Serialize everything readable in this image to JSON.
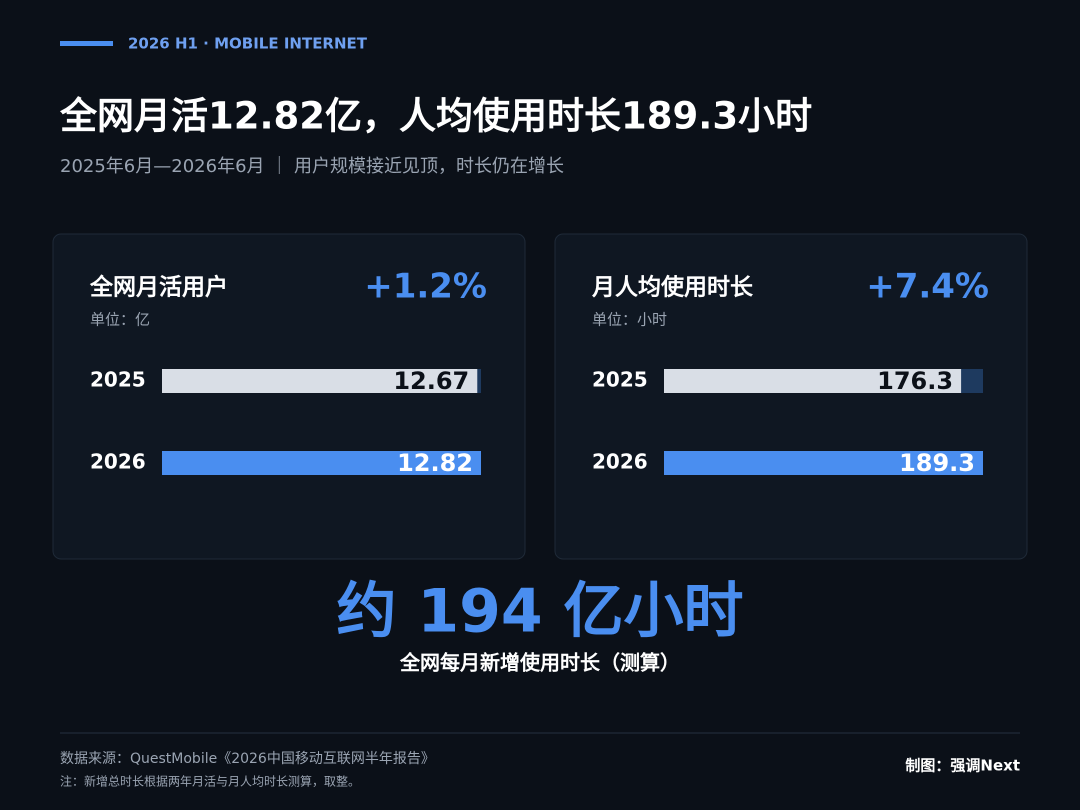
{
  "header": {
    "tag": "2026 H1 · MOBILE INTERNET",
    "title": "全网月活12.82亿，人均使用时长189.3小时",
    "subtitle": "2025年6月—2026年6月 ｜ 用户规模接近见顶，时长仍在增长"
  },
  "chart_data": [
    {
      "type": "bar",
      "orientation": "horizontal",
      "title": "全网月活用户",
      "change": "+1.2%",
      "unit": "单位：亿",
      "categories": [
        "2025",
        "2026"
      ],
      "values": [
        12.67,
        12.82
      ],
      "colors": [
        "#d9dee6",
        "#4a8ef0"
      ],
      "label_colors": [
        "#0b1018",
        "#ffffff"
      ],
      "track_color": "#1e3a5f",
      "xlim": [
        0,
        12.82
      ]
    },
    {
      "type": "bar",
      "orientation": "horizontal",
      "title": "月人均使用时长",
      "change": "+7.4%",
      "unit": "单位：小时",
      "categories": [
        "2025",
        "2026"
      ],
      "values": [
        176.3,
        189.3
      ],
      "colors": [
        "#d9dee6",
        "#4a8ef0"
      ],
      "label_colors": [
        "#0b1018",
        "#ffffff"
      ],
      "track_color": "#1e3a5f",
      "xlim": [
        0,
        189.3
      ]
    }
  ],
  "highlight": {
    "value_text": "约 194 亿小时",
    "caption": "全网每月新增使用时长（测算）"
  },
  "footer": {
    "source": "数据来源：QuestMobile《2026中国移动互联网半年报告》",
    "note": "注：新增总时长根据两年月活与月人均时长测算，取整。",
    "credit": "制图：强调Next"
  }
}
